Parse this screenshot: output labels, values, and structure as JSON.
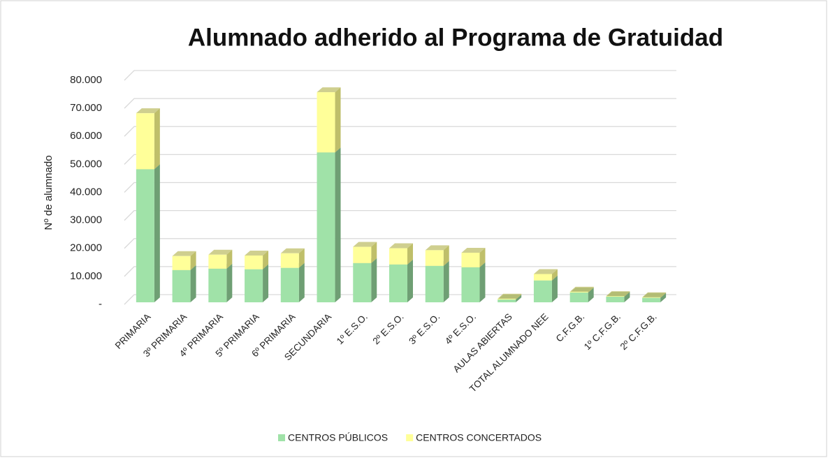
{
  "chart_data": {
    "type": "bar3d_stacked",
    "title": "Alumnado adherido al Programa de Gratuidad",
    "y_label": "Nº de alumnado",
    "categories": [
      "PRIMARIA",
      "3º PRIMARIA",
      "4º PRIMARIA",
      "5º PRIMARIA",
      "6º PRIMARIA",
      "SECUNDARIA",
      "1º E.S.O.",
      "2º E.S.O.",
      "3º E.S.O.",
      "4º E.S.O.",
      "AULAS ABIERTAS",
      "TOTAL ALUMNADO NEE",
      "C.F.G.B.",
      "1º C.F.G.B.",
      "2º C.F.G.B."
    ],
    "series": [
      {
        "name": "CENTROS PÚBLICOS",
        "color": "#a0e2a8",
        "side_color": "#6f9f74",
        "values": [
          47500,
          11500,
          12000,
          11800,
          12300,
          53500,
          14000,
          13500,
          13000,
          12500,
          1000,
          7800,
          3500,
          2000,
          1600
        ]
      },
      {
        "name": "CENTROS CONCERTADOS",
        "color": "#ffff99",
        "side_color": "#bfbf6a",
        "values": [
          20000,
          5000,
          5000,
          4900,
          5200,
          21500,
          5800,
          5800,
          5600,
          5200,
          300,
          2300,
          300,
          200,
          200
        ]
      }
    ],
    "ylim": [
      0,
      80000
    ],
    "yticks": [
      {
        "value": 0,
        "label": "-"
      },
      {
        "value": 10000,
        "label": "10.000"
      },
      {
        "value": 20000,
        "label": "20.000"
      },
      {
        "value": 30000,
        "label": "30.000"
      },
      {
        "value": 40000,
        "label": "40.000"
      },
      {
        "value": 50000,
        "label": "50.000"
      },
      {
        "value": 60000,
        "label": "60.000"
      },
      {
        "value": 70000,
        "label": "70.000"
      },
      {
        "value": 80000,
        "label": "80.000"
      }
    ],
    "grid": true,
    "legend": "bottom"
  }
}
